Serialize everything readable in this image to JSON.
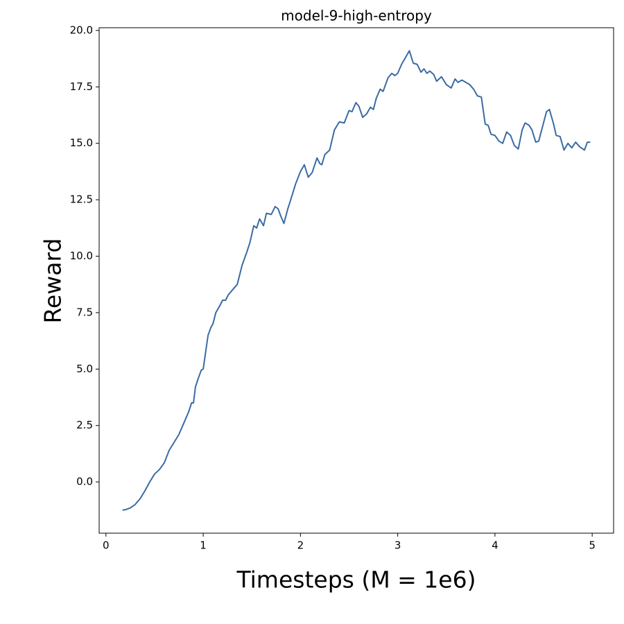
{
  "chart_data": {
    "type": "line",
    "title": "model-9-high-entropy",
    "x_label": "Timesteps (M = 1e6)",
    "y_label": "Reward",
    "x": [
      0.17,
      0.2,
      0.25,
      0.3,
      0.35,
      0.4,
      0.45,
      0.5,
      0.55,
      0.6,
      0.65,
      0.7,
      0.75,
      0.8,
      0.85,
      0.88,
      0.9,
      0.92,
      0.95,
      0.98,
      1.0,
      1.03,
      1.05,
      1.08,
      1.1,
      1.13,
      1.17,
      1.2,
      1.23,
      1.26,
      1.3,
      1.35,
      1.4,
      1.45,
      1.48,
      1.52,
      1.55,
      1.58,
      1.62,
      1.65,
      1.7,
      1.74,
      1.77,
      1.8,
      1.83,
      1.87,
      1.9,
      1.95,
      2.0,
      2.04,
      2.08,
      2.12,
      2.17,
      2.2,
      2.22,
      2.25,
      2.3,
      2.35,
      2.4,
      2.45,
      2.5,
      2.53,
      2.57,
      2.6,
      2.64,
      2.68,
      2.72,
      2.75,
      2.78,
      2.82,
      2.85,
      2.9,
      2.94,
      2.97,
      3.0,
      3.04,
      3.08,
      3.12,
      3.16,
      3.2,
      3.24,
      3.27,
      3.3,
      3.33,
      3.37,
      3.4,
      3.45,
      3.5,
      3.55,
      3.59,
      3.62,
      3.66,
      3.7,
      3.74,
      3.78,
      3.82,
      3.86,
      3.9,
      3.93,
      3.96,
      4.0,
      4.04,
      4.08,
      4.12,
      4.16,
      4.2,
      4.24,
      4.28,
      4.31,
      4.35,
      4.38,
      4.42,
      4.45,
      4.49,
      4.53,
      4.56,
      4.6,
      4.63,
      4.67,
      4.71,
      4.75,
      4.79,
      4.83,
      4.87,
      4.92,
      4.95,
      4.98
    ],
    "series": [
      {
        "name": "model-9-high-entropy",
        "color": "#3a6aa3",
        "values": [
          -1.25,
          -1.23,
          -1.15,
          -1.0,
          -0.75,
          -0.4,
          0.0,
          0.35,
          0.55,
          0.85,
          1.4,
          1.75,
          2.1,
          2.6,
          3.1,
          3.5,
          3.5,
          4.2,
          4.6,
          4.95,
          5.0,
          5.9,
          6.5,
          6.85,
          7.0,
          7.5,
          7.8,
          8.05,
          8.05,
          8.3,
          8.5,
          8.75,
          9.6,
          10.2,
          10.6,
          11.35,
          11.25,
          11.65,
          11.35,
          11.9,
          11.85,
          12.2,
          12.1,
          11.75,
          11.45,
          12.1,
          12.5,
          13.2,
          13.75,
          14.05,
          13.5,
          13.7,
          14.35,
          14.1,
          14.05,
          14.5,
          14.7,
          15.6,
          15.95,
          15.9,
          16.45,
          16.4,
          16.8,
          16.65,
          16.15,
          16.3,
          16.6,
          16.5,
          17.0,
          17.4,
          17.3,
          17.9,
          18.1,
          18.0,
          18.1,
          18.5,
          18.8,
          19.1,
          18.55,
          18.5,
          18.15,
          18.3,
          18.1,
          18.2,
          18.05,
          17.75,
          17.95,
          17.6,
          17.45,
          17.85,
          17.7,
          17.8,
          17.7,
          17.6,
          17.4,
          17.1,
          17.05,
          15.85,
          15.8,
          15.4,
          15.35,
          15.1,
          15.0,
          15.5,
          15.35,
          14.9,
          14.75,
          15.6,
          15.9,
          15.8,
          15.6,
          15.05,
          15.1,
          15.75,
          16.4,
          16.5,
          15.9,
          15.35,
          15.3,
          14.7,
          15.0,
          14.8,
          15.05,
          14.85,
          14.7,
          15.05,
          15.05
        ]
      }
    ],
    "xlim": [
      -0.07,
      5.22
    ],
    "xticks": [
      0,
      1,
      2,
      3,
      4,
      5
    ],
    "ylim": [
      -2.27,
      20.12
    ],
    "yticks": [
      {
        "value": 0,
        "label": "0.0"
      },
      {
        "value": 2.5,
        "label": "2.5"
      },
      {
        "value": 5,
        "label": "5.0"
      },
      {
        "value": 7.5,
        "label": "7.5"
      },
      {
        "value": 10,
        "label": "10.0"
      },
      {
        "value": 12.5,
        "label": "12.5"
      },
      {
        "value": 15,
        "label": "15.0"
      },
      {
        "value": 17.5,
        "label": "17.5"
      },
      {
        "value": 20,
        "label": "20.0"
      }
    ],
    "grid": false
  }
}
